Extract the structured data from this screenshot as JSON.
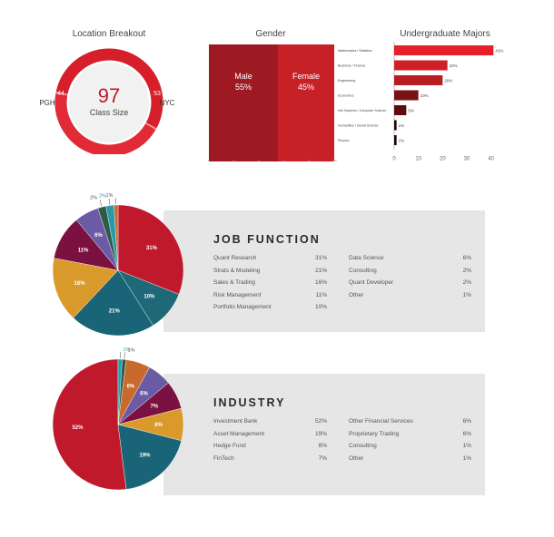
{
  "chart_data": [
    {
      "type": "pie",
      "title": "Location Breakout",
      "center_value": "97",
      "center_label": "Class Size",
      "slices": [
        {
          "label": "PGH",
          "value": 44
        },
        {
          "label": "NYC",
          "value": 53
        }
      ],
      "colors": {
        "ring": "#d71f2b",
        "ring_light": "#f19aa0",
        "center": "#f1f1f1"
      }
    },
    {
      "type": "bar",
      "title": "Gender",
      "categories": [
        "Male",
        "Female"
      ],
      "values": [
        55,
        45
      ],
      "value_labels": [
        "55%",
        "45%"
      ],
      "x_ticks": [
        "0",
        "20",
        "40",
        "60",
        "80",
        "100"
      ],
      "colors": [
        "#9e1a22",
        "#c82027"
      ]
    },
    {
      "type": "bar",
      "title": "Undergraduate Majors",
      "categories": [
        "Mathematics / Statistics",
        "Business / Finance",
        "Engineering",
        "Economics",
        "Info Systems / Computer Science",
        "Humanities / Social Science",
        "Physics"
      ],
      "values": [
        41,
        22,
        20,
        10,
        5,
        1,
        1
      ],
      "value_labels": [
        "41%",
        "22%",
        "20%",
        "10%",
        "5%",
        "1%",
        "1%"
      ],
      "x_ticks": [
        "0",
        "10",
        "20",
        "30",
        "40"
      ],
      "xlim": [
        0,
        45
      ],
      "colors": [
        "#e51f2b",
        "#cf2028",
        "#b81d23",
        "#7a1114",
        "#5c0c10",
        "#2a0608",
        "#1c0404"
      ]
    },
    {
      "type": "pie",
      "title": "JOB FUNCTION",
      "slices": [
        {
          "label": "Quant Research",
          "value": 31,
          "value_label": "31%",
          "color": "#c0192c"
        },
        {
          "label": "Portfolio Management",
          "value": 10,
          "value_label": "10%",
          "color": "#1e6878"
        },
        {
          "label": "Strats & Modeling",
          "value": 21,
          "value_label": "21%",
          "color": "#1a6478"
        },
        {
          "label": "Sales & Trading",
          "value": 16,
          "value_label": "16%",
          "color": "#d99a2b"
        },
        {
          "label": "Risk Management",
          "value": 11,
          "value_label": "11%",
          "color": "#7b1140"
        },
        {
          "label": "Data Science",
          "value": 6,
          "value_label": "6%",
          "color": "#6b5ba5"
        },
        {
          "label": "Consulting",
          "value": 2,
          "value_label": "2%",
          "color": "#2f5a4a"
        },
        {
          "label": "Quant Developer",
          "value": 2,
          "value_label": "2%",
          "color": "#2b9aa8"
        },
        {
          "label": "Other",
          "value": 1,
          "value_label": "1%",
          "color": "#c86a2b"
        }
      ],
      "legend_left": [
        {
          "label": "Quant Research",
          "pct": "31%"
        },
        {
          "label": "Strats & Modeling",
          "pct": "21%"
        },
        {
          "label": "Sales & Trading",
          "pct": "16%"
        },
        {
          "label": "Risk Management",
          "pct": "11%"
        },
        {
          "label": "Portfolio Management",
          "pct": "10%"
        }
      ],
      "legend_right": [
        {
          "label": "Data Science",
          "pct": "6%"
        },
        {
          "label": "Consulting",
          "pct": "2%"
        },
        {
          "label": "Quant Developer",
          "pct": "2%"
        },
        {
          "label": "Other",
          "pct": "1%"
        }
      ]
    },
    {
      "type": "pie",
      "title": "INDUSTRY",
      "slices": [
        {
          "label": "Investment Bank",
          "value": 52,
          "value_label": "52%",
          "color": "#c0192c"
        },
        {
          "label": "Other",
          "value": 1,
          "value_label": "1%",
          "color": "#2b9aa8"
        },
        {
          "label": "Consulting",
          "value": 1,
          "value_label": "1%",
          "color": "#2f5a4a"
        },
        {
          "label": "Other Financial Services",
          "value": 6,
          "value_label": "6%",
          "color": "#c86a2b"
        },
        {
          "label": "Proprietary Trading",
          "value": 6,
          "value_label": "6%",
          "color": "#6b5ba5"
        },
        {
          "label": "FinTech",
          "value": 7,
          "value_label": "7%",
          "color": "#7b1140"
        },
        {
          "label": "Hedge Fund",
          "value": 8,
          "value_label": "8%",
          "color": "#d99a2b"
        },
        {
          "label": "Asset Management",
          "value": 19,
          "value_label": "19%",
          "color": "#1a6478"
        }
      ],
      "legend_left": [
        {
          "label": "Investment Bank",
          "pct": "52%"
        },
        {
          "label": "Asset Management",
          "pct": "19%"
        },
        {
          "label": "Hedge Fund",
          "pct": "8%"
        },
        {
          "label": "FinTech",
          "pct": "7%"
        }
      ],
      "legend_right": [
        {
          "label": "Other Financial Services",
          "pct": "6%"
        },
        {
          "label": "Proprietary Trading",
          "pct": "6%"
        },
        {
          "label": "Consulting",
          "pct": "1%"
        },
        {
          "label": "Other",
          "pct": "1%"
        }
      ]
    }
  ]
}
